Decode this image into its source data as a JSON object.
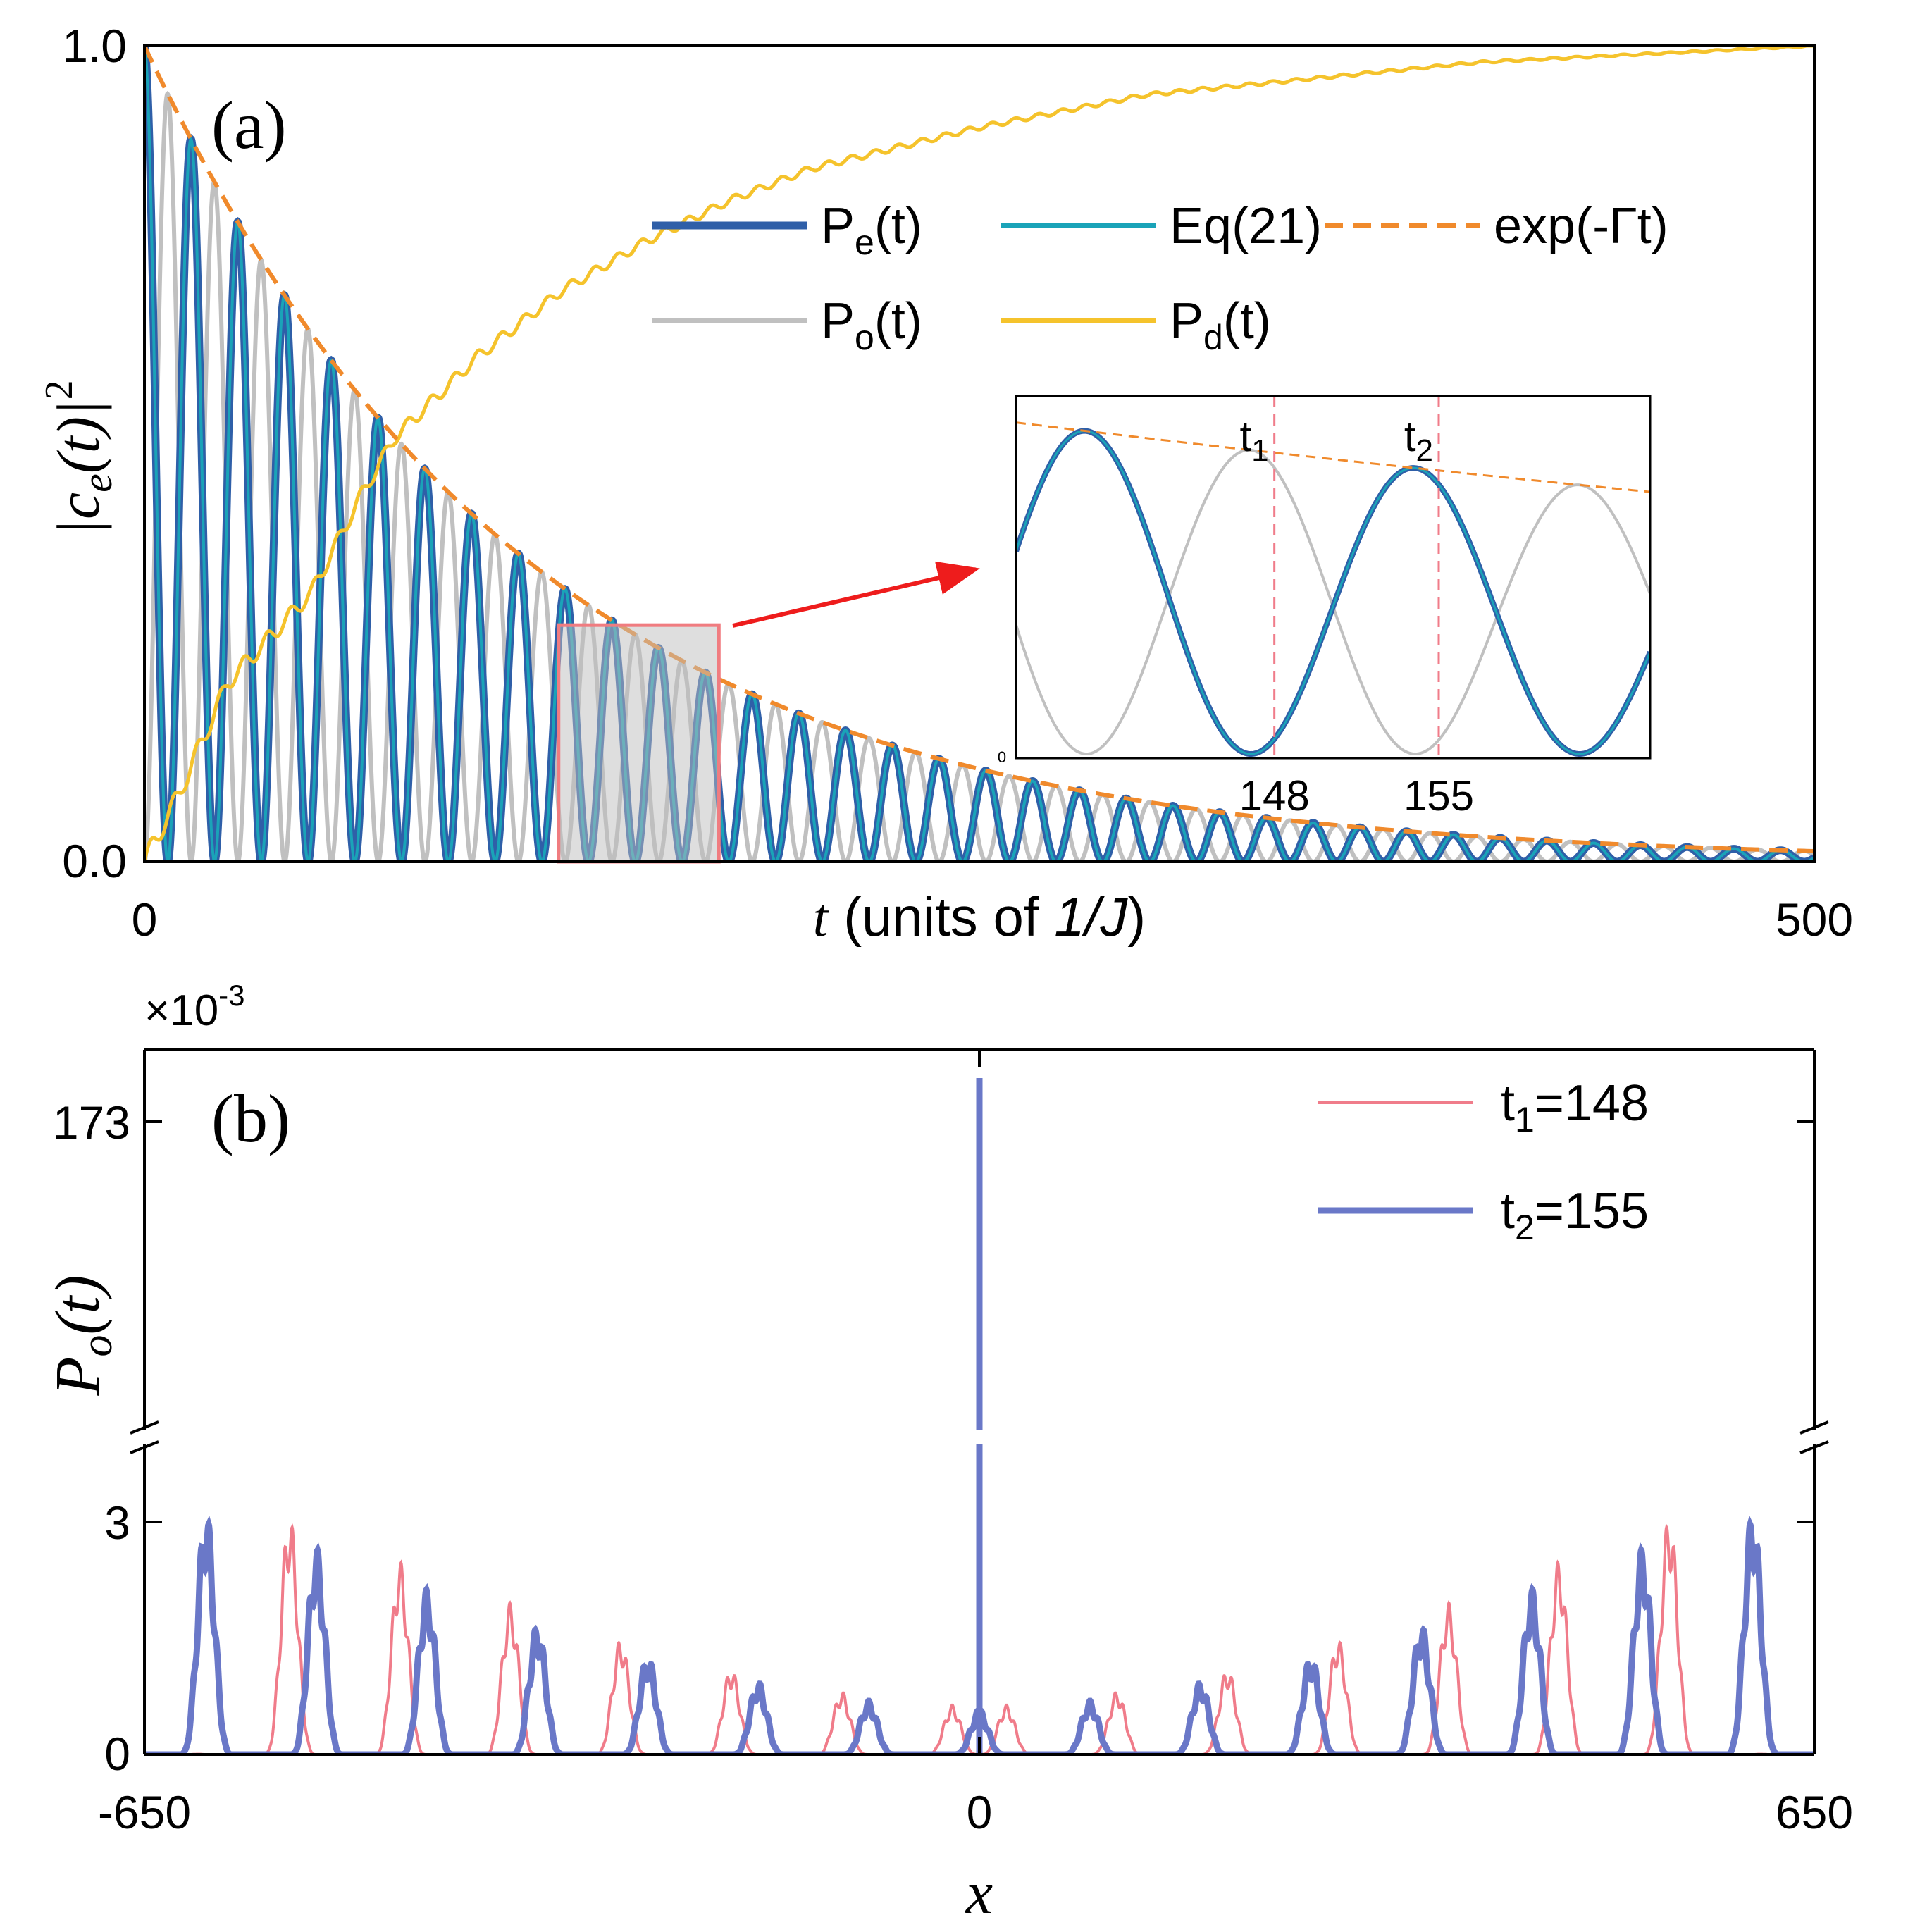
{
  "panel_a": {
    "label": "(a)",
    "ylabel_main": "|c",
    "ylabel_sub": "e",
    "ylabel_arg": "(t)|",
    "ylabel_sup": "2",
    "xlabel_t": "t",
    "xlabel_units": " (units of ",
    "xlabel_unit_val": "1/J",
    "xlabel_close": ")",
    "xticks": [
      "0",
      "500"
    ],
    "yticks": [
      "0.0",
      "1.0"
    ],
    "legend": {
      "pe_main": "P",
      "pe_sub": "e",
      "pe_tail": "(t)",
      "eq21": "Eq(21)",
      "exp": "exp(-Γt)",
      "po_main": "P",
      "po_sub": "o",
      "po_tail": "(t)",
      "pd_main": "P",
      "pd_sub": "d",
      "pd_tail": "(t)"
    },
    "inset": {
      "t1_main": "t",
      "t1_sub": "1",
      "t2_main": "t",
      "t2_sub": "2",
      "xticks": [
        "148",
        "155"
      ],
      "ytick": "0"
    }
  },
  "panel_b": {
    "label": "(b)",
    "multiplier": "×10",
    "multiplier_exp": "-3",
    "ylabel_main": "P",
    "ylabel_sub": "o",
    "ylabel_arg": "(t)",
    "xlabel": "x",
    "xticks": [
      "-650",
      "0",
      "650"
    ],
    "yticks": [
      "0",
      "3",
      "173"
    ],
    "legend": {
      "t1_main": "t",
      "t1_sub": "1",
      "t1_val": "=148",
      "t2_main": "t",
      "t2_sub": "2",
      "t2_val": "=155"
    }
  },
  "colors": {
    "pe": "#2f5fa8",
    "eq21": "#1aa3b8",
    "po": "#c0c0c0",
    "pd": "#f5c32c",
    "exp": "#f08a2c",
    "t1": "#f07c8a",
    "t2": "#6a78c8",
    "zoom_box": "#f07c80",
    "arrow": "#ee1c1c"
  },
  "chart_data": [
    {
      "type": "line",
      "panel": "a",
      "x_label": "t (units of 1/J)",
      "y_label": "|c_e(t)|^2",
      "xlim": [
        0,
        500
      ],
      "ylim": [
        0,
        1
      ],
      "series": [
        {
          "name": "P_e(t)",
          "model": "exp(-0.0087 t) * cos^2(pi t / 14)"
        },
        {
          "name": "Eq(21)",
          "model": "exp(-0.0087 t) * cos^2(pi t / 14)"
        },
        {
          "name": "exp(-Γt)",
          "model": "exp(-0.0087 t)",
          "gamma": 0.0087
        },
        {
          "name": "P_o(t)",
          "model": "exp(-0.0087 t) * sin^2(pi t / 14)"
        },
        {
          "name": "P_d(t)",
          "x": [
            0,
            10,
            25,
            50,
            65,
            75,
            100,
            125,
            150,
            175,
            200,
            250,
            300,
            350,
            400,
            450,
            500
          ],
          "y": [
            0.0,
            0.08,
            0.22,
            0.33,
            0.45,
            0.52,
            0.62,
            0.7,
            0.76,
            0.81,
            0.85,
            0.9,
            0.94,
            0.96,
            0.98,
            0.99,
            1.0
          ]
        }
      ],
      "zoom_region": {
        "x": [
          124,
          172
        ],
        "y": [
          0,
          0.29
        ]
      },
      "inset": {
        "xlim": [
          137,
          164
        ],
        "marked_times": [
          148,
          155
        ]
      }
    },
    {
      "type": "line",
      "panel": "b",
      "x_label": "x",
      "y_label": "P_o(t) ×10^-3",
      "xlim": [
        -650,
        650
      ],
      "broken_y_axis": {
        "lower": [
          0,
          3.5
        ],
        "upper_tick": 173
      },
      "series": [
        {
          "name": "t1=148",
          "model": "interference pattern, envelope rising from ~0.6 at x=0 to ~3.0 at |x|≈535, cutoff at |x|≈600"
        },
        {
          "name": "t2=155",
          "model": "interference pattern, envelope rising from ~0.5 at x=0 to ~3.0 at |x|≈585, cutoff at |x|≈630; central peak 173 at x=0"
        }
      ]
    }
  ]
}
